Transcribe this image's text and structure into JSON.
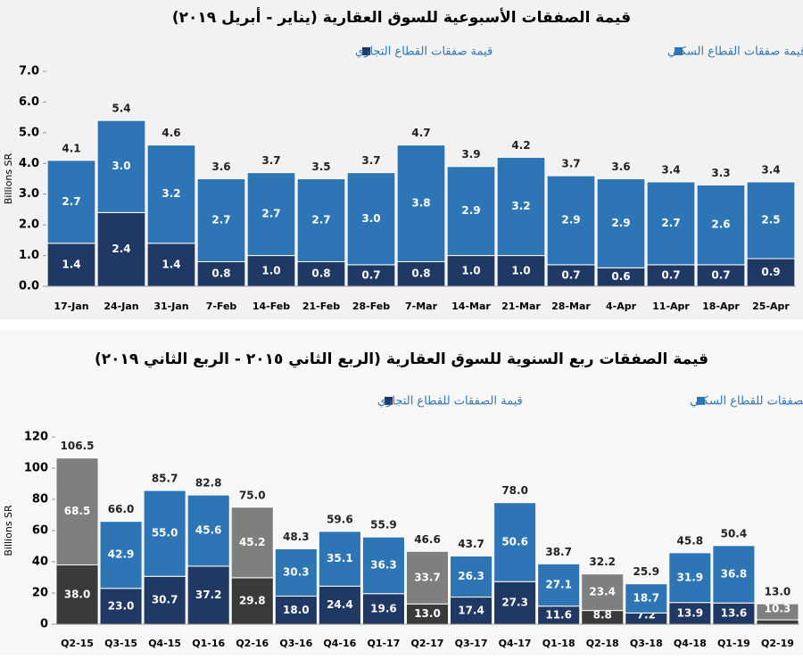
{
  "chart_data": [
    {
      "type": "stacked-bar",
      "title": "قيمة الصفقات الأسبوعية للسوق العقارية (يناير - أبريل ٢٠١٩)",
      "ylabel": "Billions SR",
      "categories": [
        "17-Jan",
        "24-Jan",
        "31-Jan",
        "7-Feb",
        "14-Feb",
        "21-Feb",
        "28-Feb",
        "7-Mar",
        "14-Mar",
        "21-Mar",
        "28-Mar",
        "4-Apr",
        "11-Apr",
        "18-Apr",
        "25-Apr"
      ],
      "series": [
        {
          "name": "قيمة صفقات القطاع التجاري",
          "color": "#1f3864",
          "values": [
            1.4,
            2.4,
            1.4,
            0.8,
            1.0,
            0.8,
            0.7,
            0.8,
            1.0,
            1.0,
            0.7,
            0.6,
            0.7,
            0.7,
            0.9
          ],
          "value_labels": [
            "1.4",
            "2.4",
            "1.4",
            "0.8",
            "1.0",
            "0.8",
            "0.7",
            "0.8",
            "1.0",
            "1.0",
            "0.7",
            "0.6",
            "0.7",
            "0.7",
            "0.9"
          ]
        },
        {
          "name": "قيمة صفقات القطاع السكني",
          "color": "#2e75b6",
          "values": [
            2.7,
            3.0,
            3.2,
            2.7,
            2.7,
            2.7,
            3.0,
            3.8,
            2.9,
            3.2,
            2.9,
            2.9,
            2.7,
            2.6,
            2.5
          ],
          "value_labels": [
            "2.7",
            "3.0",
            "3.2",
            "2.7",
            "2.7",
            "2.7",
            "3.0",
            "3.8",
            "2.9",
            "3.2",
            "2.9",
            "2.9",
            "2.7",
            "2.6",
            "2.5"
          ]
        }
      ],
      "totals": {
        "values": [
          4.1,
          5.4,
          4.6,
          3.6,
          3.7,
          3.5,
          3.7,
          4.7,
          3.9,
          4.2,
          3.7,
          3.6,
          3.4,
          3.3,
          3.4
        ],
        "value_labels": [
          "4.1",
          "5.4",
          "4.6",
          "3.6",
          "3.7",
          "3.5",
          "3.7",
          "4.7",
          "3.9",
          "4.2",
          "3.7",
          "3.6",
          "3.4",
          "3.3",
          "3.4"
        ]
      },
      "ylim": [
        0,
        7
      ],
      "yticks": [
        {
          "value": 0,
          "label": "0.0"
        },
        {
          "value": 1,
          "label": "1.0"
        },
        {
          "value": 2,
          "label": "2.0"
        },
        {
          "value": 3,
          "label": "3.0"
        },
        {
          "value": 4,
          "label": "4.0"
        },
        {
          "value": 5,
          "label": "5.0"
        },
        {
          "value": 6,
          "label": "6.0"
        },
        {
          "value": 7,
          "label": "7.0"
        }
      ]
    },
    {
      "type": "stacked-bar",
      "title": "قيمة الصفقات ربع السنوية للسوق العقارية (الربع الثاني ٢٠١٥ - الربع الثاني ٢٠١٩)",
      "ylabel": "Billions SR",
      "categories": [
        "Q2-15",
        "Q3-15",
        "Q4-15",
        "Q1-16",
        "Q2-16",
        "Q3-16",
        "Q4-16",
        "Q1-17",
        "Q2-17",
        "Q3-17",
        "Q4-17",
        "Q1-18",
        "Q2-18",
        "Q3-18",
        "Q4-18",
        "Q1-19",
        "Q2-19"
      ],
      "series": [
        {
          "name": "قيمة الصفقات للقطاع التجاري",
          "color": "#1f3864",
          "colors": [
            "#3a3a3a",
            "#1f3864",
            "#1f3864",
            "#1f3864",
            "#3a3a3a",
            "#1f3864",
            "#1f3864",
            "#1f3864",
            "#3a3a3a",
            "#1f3864",
            "#1f3864",
            "#1f3864",
            "#3a3a3a",
            "#1f3864",
            "#1f3864",
            "#1f3864",
            "#3a3a3a"
          ],
          "values": [
            38.0,
            23.0,
            30.7,
            37.2,
            29.8,
            18.0,
            24.4,
            19.6,
            13.0,
            17.4,
            27.3,
            11.6,
            8.8,
            7.2,
            13.9,
            13.6,
            2.8
          ],
          "value_labels": [
            "38.0",
            "23.0",
            "30.7",
            "37.2",
            "29.8",
            "18.0",
            "24.4",
            "19.6",
            "13.0",
            "17.4",
            "27.3",
            "11.6",
            "8.8",
            "7.2",
            "13.9",
            "13.6",
            "2.8"
          ]
        },
        {
          "name": "قيمة الصفقات للقطاع السكني",
          "color": "#2e75b6",
          "colors": [
            "#7f7f7f",
            "#2e75b6",
            "#2e75b6",
            "#2e75b6",
            "#7f7f7f",
            "#2e75b6",
            "#2e75b6",
            "#2e75b6",
            "#7f7f7f",
            "#2e75b6",
            "#2e75b6",
            "#2e75b6",
            "#7f7f7f",
            "#2e75b6",
            "#2e75b6",
            "#2e75b6",
            "#7f7f7f"
          ],
          "values": [
            68.5,
            42.9,
            55.0,
            45.6,
            45.2,
            30.3,
            35.1,
            36.3,
            33.7,
            26.3,
            50.6,
            27.1,
            23.4,
            18.7,
            31.9,
            36.8,
            10.3
          ],
          "value_labels": [
            "68.5",
            "42.9",
            "55.0",
            "45.6",
            "45.2",
            "30.3",
            "35.1",
            "36.3",
            "33.7",
            "26.3",
            "50.6",
            "27.1",
            "23.4",
            "18.7",
            "31.9",
            "36.8",
            "10.3"
          ]
        }
      ],
      "totals": {
        "values": [
          106.5,
          66.0,
          85.7,
          82.8,
          75.0,
          48.3,
          59.6,
          55.9,
          46.6,
          43.7,
          78.0,
          38.7,
          32.2,
          25.9,
          45.8,
          50.4,
          13.0
        ],
        "value_labels": [
          "106.5",
          "66.0",
          "85.7",
          "82.8",
          "75.0",
          "48.3",
          "59.6",
          "55.9",
          "46.6",
          "43.7",
          "78.0",
          "38.7",
          "32.2",
          "25.9",
          "45.8",
          "50.4",
          "13.0"
        ]
      },
      "ylim": [
        0,
        120
      ],
      "yticks": [
        0,
        20,
        40,
        60,
        80,
        100,
        120
      ]
    }
  ]
}
